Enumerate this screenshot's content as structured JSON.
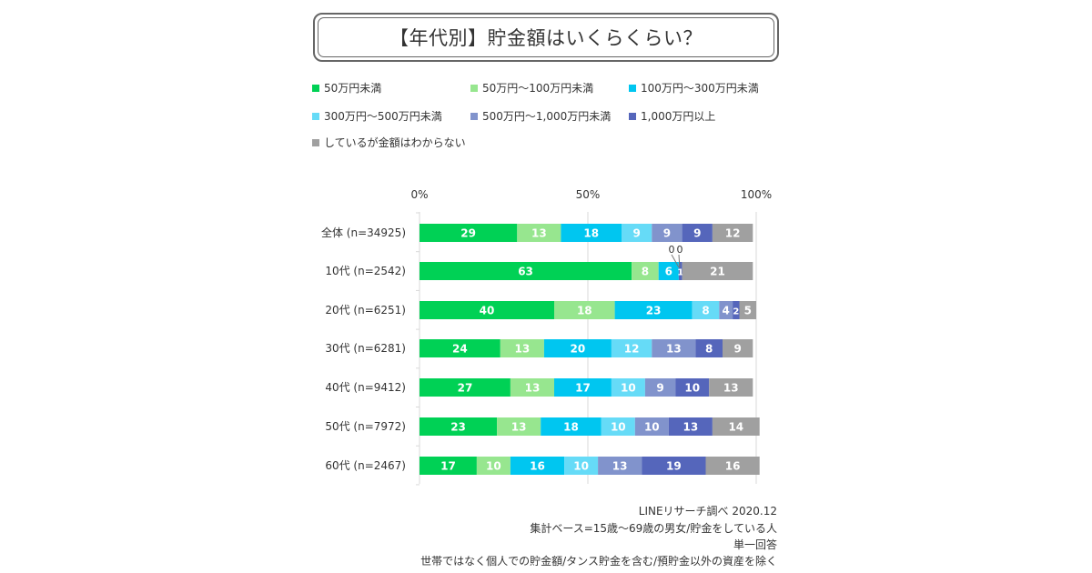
{
  "title": "【年代別】貯金額はいくらくらい？",
  "chart_data": {
    "type": "bar",
    "orientation": "horizontal",
    "stacked": true,
    "title": "【年代別】貯金額はいくらくらい？",
    "xlabel": "",
    "ylabel": "",
    "xlim": [
      0,
      100
    ],
    "x_ticks": [
      "0%",
      "50%",
      "100%"
    ],
    "grid": true,
    "legend_position": "top",
    "categories": [
      "全体 (n=34925)",
      "10代 (n=2542)",
      "20代 (n=6251)",
      "30代 (n=6281)",
      "40代 (n=9412)",
      "50代 (n=7972)",
      "60代 (n=2467)"
    ],
    "series": [
      {
        "name": "50万円未満",
        "color": "#00d155",
        "values": [
          29,
          63,
          40,
          24,
          27,
          23,
          17
        ]
      },
      {
        "name": "50万円〜100万円未満",
        "color": "#97e68f",
        "values": [
          13,
          8,
          18,
          13,
          13,
          13,
          10
        ]
      },
      {
        "name": "100万円〜300万円未満",
        "color": "#00c6f0",
        "values": [
          18,
          6,
          23,
          20,
          17,
          18,
          16
        ]
      },
      {
        "name": "300万円〜500万円未満",
        "color": "#66dbf7",
        "values": [
          9,
          0,
          8,
          12,
          10,
          10,
          10
        ]
      },
      {
        "name": "500万円〜1,000万円未満",
        "color": "#8193cc",
        "values": [
          9,
          0,
          4,
          13,
          9,
          10,
          13
        ]
      },
      {
        "name": "1,000万円以上",
        "color": "#5566bb",
        "values": [
          9,
          1,
          2,
          8,
          10,
          13,
          19
        ]
      },
      {
        "name": "しているが金額はわからない",
        "color": "#a0a0a0",
        "values": [
          12,
          21,
          5,
          9,
          13,
          14,
          16
        ]
      }
    ],
    "callout_labels": [
      "0",
      "0"
    ]
  },
  "notes": [
    "LINEリサーチ調べ 2020.12",
    "集計ベース=15歳〜69歳の男女/貯金をしている人",
    "単一回答",
    "世帯ではなく個人での貯金額/タンス貯金を含む/預貯金以外の資産を除く"
  ]
}
